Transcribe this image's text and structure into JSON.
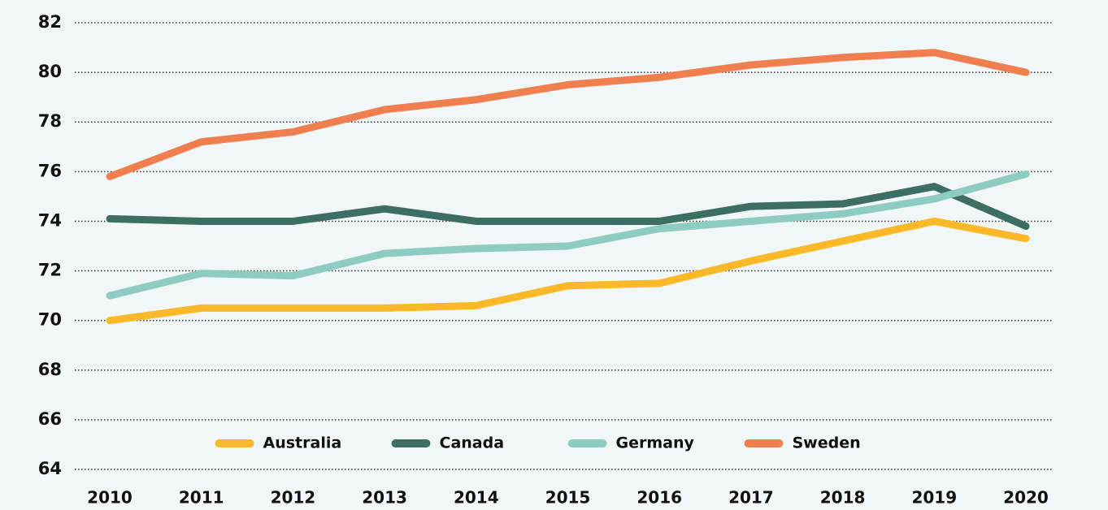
{
  "chart_data": {
    "type": "line",
    "categories": [
      "2010",
      "2011",
      "2012",
      "2013",
      "2014",
      "2015",
      "2016",
      "2017",
      "2018",
      "2019",
      "2020"
    ],
    "series": [
      {
        "name": "Australia",
        "color": "#fbb829",
        "values": [
          70.0,
          70.5,
          70.5,
          70.5,
          70.6,
          71.4,
          71.5,
          72.4,
          73.2,
          74.0,
          73.3
        ]
      },
      {
        "name": "Canada",
        "color": "#3d6e64",
        "values": [
          74.1,
          74.0,
          74.0,
          74.5,
          74.0,
          74.0,
          74.0,
          74.6,
          74.7,
          75.4,
          73.8
        ]
      },
      {
        "name": "Germany",
        "color": "#8ecbc0",
        "values": [
          71.0,
          71.9,
          71.8,
          72.7,
          72.9,
          73.0,
          73.7,
          74.0,
          74.3,
          74.9,
          75.9
        ]
      },
      {
        "name": "Sweden",
        "color": "#f07f50",
        "values": [
          75.8,
          77.2,
          77.6,
          78.5,
          78.9,
          79.5,
          79.8,
          80.3,
          80.6,
          80.8,
          80.0
        ]
      }
    ],
    "ylim": [
      64,
      82
    ],
    "yticks": [
      64,
      66,
      68,
      70,
      72,
      74,
      76,
      78,
      80,
      82
    ],
    "grid": true,
    "legend": "bottom"
  }
}
